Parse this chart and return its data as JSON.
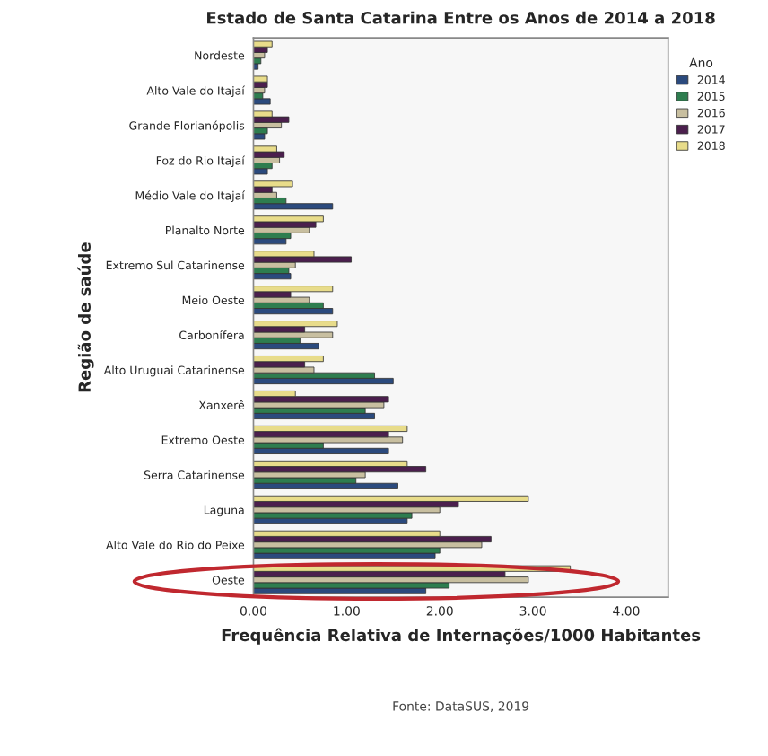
{
  "chart_data": {
    "type": "bar",
    "orientation": "horizontal",
    "title": "Estado de Santa Catarina Entre os Anos de 2014 a 2018",
    "xlabel": "Frequência Relativa de Internações/1000 Habitantes",
    "ylabel": "Região de saúde",
    "legend_title": "Ano",
    "legend": "right",
    "grid": false,
    "categories": [
      "Nordeste",
      "Alto Vale do Itajaí",
      "Grande Florianópolis",
      "Foz do Rio Itajaí",
      "Médio Vale do Itajaí",
      "Planalto Norte",
      "Extremo Sul Catarinense",
      "Meio Oeste",
      "Carbonífera",
      "Alto Uruguai Catarinense",
      "Xanxerê",
      "Extremo Oeste",
      "Serra Catarinense",
      "Laguna",
      "Alto Vale do Rio do Peixe",
      "Oeste"
    ],
    "series": [
      {
        "name": "2014",
        "color": "#2b4a7d",
        "values": [
          0.05,
          0.18,
          0.12,
          0.15,
          0.85,
          0.35,
          0.4,
          0.85,
          0.7,
          1.5,
          1.3,
          1.45,
          1.55,
          1.65,
          1.95,
          1.85
        ]
      },
      {
        "name": "2015",
        "color": "#2e7d4f",
        "values": [
          0.08,
          0.1,
          0.15,
          0.2,
          0.35,
          0.4,
          0.38,
          0.75,
          0.5,
          1.3,
          1.2,
          0.75,
          1.1,
          1.7,
          2.0,
          2.1
        ]
      },
      {
        "name": "2016",
        "color": "#c8bfa0",
        "values": [
          0.12,
          0.12,
          0.3,
          0.28,
          0.25,
          0.6,
          0.45,
          0.6,
          0.85,
          0.65,
          1.4,
          1.6,
          1.2,
          2.0,
          2.45,
          2.95
        ]
      },
      {
        "name": "2017",
        "color": "#4b1f4d",
        "values": [
          0.15,
          0.15,
          0.38,
          0.33,
          0.2,
          0.67,
          1.05,
          0.4,
          0.55,
          0.55,
          1.45,
          1.45,
          1.85,
          2.2,
          2.55,
          2.7
        ]
      },
      {
        "name": "2018",
        "color": "#e8dc8a",
        "values": [
          0.2,
          0.15,
          0.2,
          0.25,
          0.42,
          0.75,
          0.65,
          0.85,
          0.9,
          0.75,
          0.45,
          1.65,
          1.65,
          2.95,
          2.0,
          3.4
        ]
      }
    ],
    "xlim": [
      0,
      4.45
    ],
    "xticks": [
      {
        "value": 0,
        "label": "0.00"
      },
      {
        "value": 1,
        "label": "1.00"
      },
      {
        "value": 2,
        "label": "2.00"
      },
      {
        "value": 3,
        "label": "3.00"
      },
      {
        "value": 4,
        "label": "4.00"
      }
    ],
    "annotations": [
      "Fonte: DataSUS, 2019"
    ]
  }
}
